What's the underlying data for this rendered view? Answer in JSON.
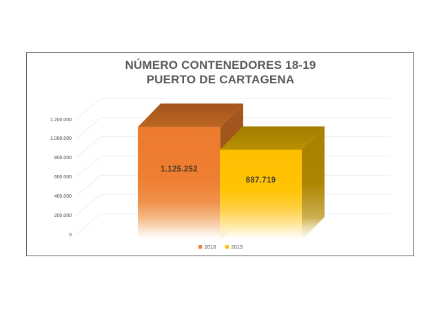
{
  "page": {
    "background": "#ffffff"
  },
  "chart": {
    "title_line1": "NÚMERO CONTENEDORES 18-19",
    "title_line2": "PUERTO DE CARTAGENA"
  },
  "chart_data": {
    "type": "bar",
    "style": "3d",
    "title": "NÚMERO CONTENEDORES 18-19 PUERTO DE CARTAGENA",
    "categories": [
      "2018",
      "2019"
    ],
    "values": [
      1125252,
      887719
    ],
    "value_labels": [
      "1.125.252",
      "887.719"
    ],
    "xlabel": "",
    "ylabel": "",
    "ylim": [
      0,
      1200000
    ],
    "ytick_step": 200000,
    "ytick_labels": [
      "0",
      "200.000",
      "400.000",
      "600.000",
      "800.000",
      "1.000.000",
      "1.200.000"
    ],
    "grid": true,
    "legend_position": "bottom",
    "legend": [
      {
        "label": "2018",
        "color": "#ED7D31"
      },
      {
        "label": "2019",
        "color": "#FFC000"
      }
    ]
  },
  "colors": {
    "grid": "#ECECEC",
    "frame_border": "#5A5A5A",
    "title_text": "#595959",
    "axis_text": "#4A4A4A",
    "legend_text": "#525252",
    "series": [
      {
        "name": "2018",
        "legend_swatch": "#ED7D31",
        "label_text": "#4C3827",
        "front_stops": [
          [
            0,
            "#EC7B2E",
            1
          ],
          [
            0.45,
            "#EE7E31",
            1
          ],
          [
            0.66,
            "#F0904B",
            1
          ],
          [
            0.8,
            "#F5B987",
            1
          ],
          [
            0.9,
            "#FADFC6",
            1
          ],
          [
            0.96,
            "#FDF1E5",
            0.6
          ],
          [
            1,
            "#FFFFFF",
            0
          ]
        ],
        "top_stops": [
          [
            0,
            "#A2551A",
            1
          ],
          [
            1,
            "#BC6522",
            1
          ]
        ],
        "side_stops": [
          [
            0,
            "#A5581F",
            1
          ],
          [
            0.55,
            "#965319",
            1
          ],
          [
            0.85,
            "#9A6030",
            0.85
          ],
          [
            1,
            "#B98A5C",
            0
          ]
        ]
      },
      {
        "name": "2019",
        "legend_swatch": "#FFC000",
        "label_text": "#454029",
        "front_stops": [
          [
            0,
            "#FEBE00",
            1
          ],
          [
            0.45,
            "#FFC405",
            1
          ],
          [
            0.66,
            "#FFD047",
            1
          ],
          [
            0.8,
            "#FFE391",
            1
          ],
          [
            0.9,
            "#FFF2C9",
            1
          ],
          [
            0.96,
            "#FFFAE8",
            0.6
          ],
          [
            1,
            "#FFFFFF",
            0
          ]
        ],
        "top_stops": [
          [
            0,
            "#A17C00",
            1
          ],
          [
            1,
            "#B89000",
            1
          ]
        ],
        "side_stops": [
          [
            0,
            "#A88100",
            1
          ],
          [
            0.5,
            "#AC8500",
            1
          ],
          [
            0.8,
            "#C7A63E",
            0.9
          ],
          [
            1,
            "#E3CC77",
            0
          ]
        ]
      }
    ]
  }
}
